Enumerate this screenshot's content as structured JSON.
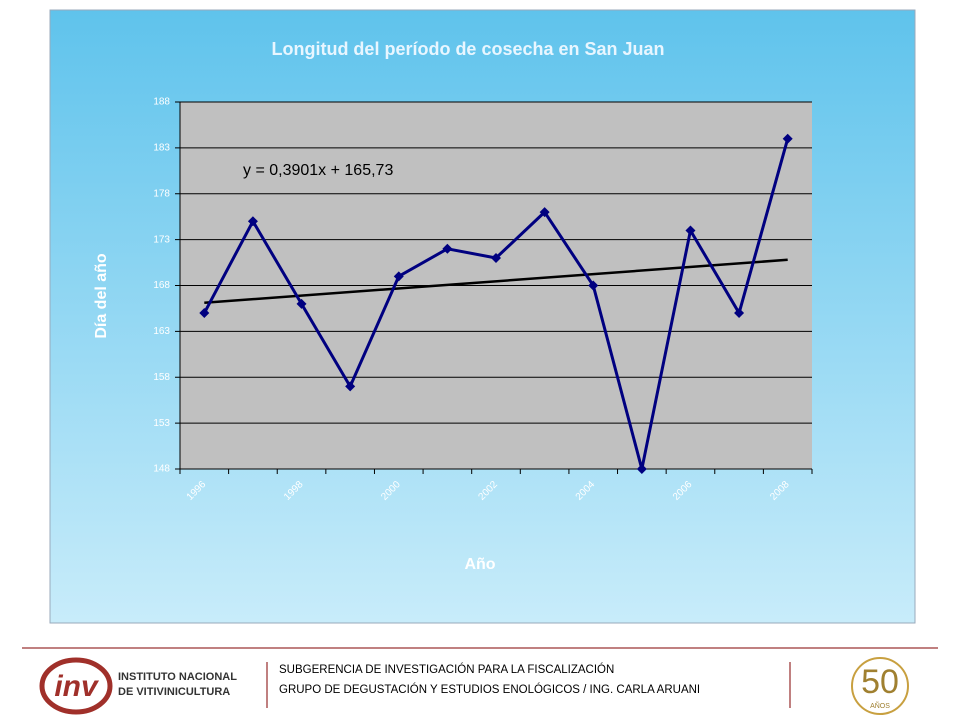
{
  "chart_data": {
    "type": "line",
    "title": "Longitud del período de cosecha en San Juan",
    "y_label": "Día del año",
    "x_label": "Año",
    "categories": [
      "1996",
      null,
      "1998",
      null,
      "2000",
      null,
      "2002",
      null,
      "2004",
      null,
      "2006",
      null,
      "2008"
    ],
    "series": [
      {
        "name": "Día del año",
        "color": "#000080",
        "values": [
          165,
          175,
          166,
          157,
          169,
          172,
          171,
          176,
          168,
          148,
          174,
          165,
          184
        ]
      }
    ],
    "trendline": {
      "label": "y = 0,3901x + 165,73",
      "slope": 0.3901,
      "intercept": 165.73,
      "color": "#000000"
    },
    "ylim": [
      148,
      188
    ],
    "yticks": [
      148,
      153,
      158,
      163,
      168,
      173,
      178,
      183,
      188
    ],
    "grid": true
  },
  "footer": {
    "logo": "inv",
    "institute": [
      "INSTITUTO NACIONAL",
      "DE VITIVINICULTURA"
    ],
    "lines": [
      "SUBGERENCIA DE INVESTIGACIÓN PARA LA FISCALIZACIÓN",
      "GRUPO DE DEGUSTACIÓN Y ESTUDIOS ENOLÓGICOS / ING. CARLA ARUANI"
    ],
    "badge": "50",
    "badge_sub": "AÑOS"
  }
}
